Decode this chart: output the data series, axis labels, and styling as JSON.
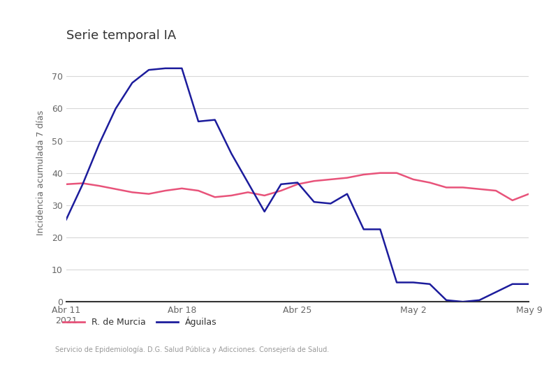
{
  "title": "Serie temporal IA",
  "ylabel": "Incidencia acumulada 7 días",
  "footnote": "Servicio de Epidemiología. D.G. Salud Pública y Adicciones. Consejería de Salud.",
  "xlim_days": [
    0,
    28
  ],
  "ylim": [
    0,
    80
  ],
  "yticks": [
    0,
    10,
    20,
    30,
    40,
    50,
    60,
    70
  ],
  "xtick_labels": [
    "Abr 11\n2021",
    "Abr 18",
    "Abr 25",
    "May 2",
    "May 9"
  ],
  "xtick_positions": [
    0,
    7,
    14,
    21,
    28
  ],
  "murcia_color": "#e8537a",
  "aguilas_color": "#1c1c9c",
  "background_color": "#ffffff",
  "plot_background": "#ffffff",
  "sidebar_color": "#e8e8e8",
  "murcia_x": [
    0,
    1,
    2,
    3,
    4,
    5,
    6,
    7,
    8,
    9,
    10,
    11,
    12,
    13,
    14,
    15,
    16,
    17,
    18,
    19,
    20,
    21,
    22,
    23,
    24,
    25,
    26,
    27,
    28
  ],
  "murcia_y": [
    36.5,
    36.8,
    36.0,
    35.0,
    34.0,
    33.5,
    34.5,
    35.2,
    34.5,
    32.5,
    33.0,
    34.0,
    33.0,
    34.5,
    36.5,
    37.5,
    38.0,
    38.5,
    39.5,
    40.0,
    40.0,
    38.0,
    37.0,
    35.5,
    35.5,
    35.0,
    34.5,
    31.5,
    33.5
  ],
  "aguilas_x": [
    0,
    1,
    2,
    3,
    4,
    5,
    6,
    7,
    8,
    9,
    10,
    11,
    12,
    13,
    14,
    15,
    16,
    17,
    18,
    19,
    20,
    21,
    22,
    23,
    24,
    25,
    26,
    27,
    28
  ],
  "aguilas_y": [
    25.5,
    36.5,
    49.0,
    60.0,
    68.0,
    72.0,
    72.5,
    72.5,
    56.0,
    56.5,
    46.0,
    37.0,
    28.0,
    36.5,
    37.0,
    31.0,
    30.5,
    33.5,
    22.5,
    22.5,
    6.0,
    6.0,
    5.5,
    0.5,
    0.0,
    0.5,
    3.0,
    5.5,
    5.5
  ]
}
